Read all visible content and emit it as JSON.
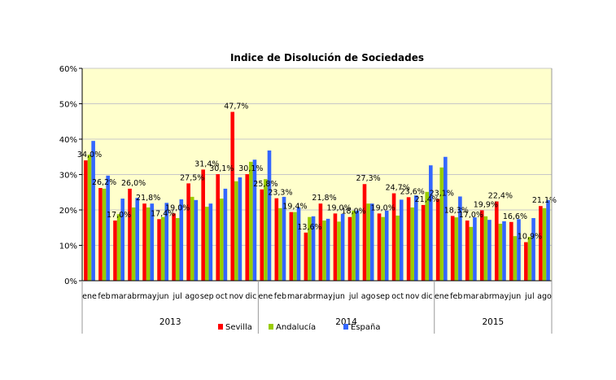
{
  "chart_data": {
    "type": "bar",
    "title": "Indice de Disolución de Sociedades",
    "xlabel": "",
    "ylabel": "",
    "ylim": [
      0,
      60
    ],
    "yticks": [
      "0%",
      "10%",
      "20%",
      "30%",
      "40%",
      "50%",
      "60%"
    ],
    "grid": true,
    "legend_position": "bottom",
    "years": [
      {
        "label": "2013",
        "months": 12
      },
      {
        "label": "2014",
        "months": 12
      },
      {
        "label": "2015",
        "months": 8
      }
    ],
    "categories": [
      "ene",
      "feb",
      "mar",
      "abr",
      "may",
      "jun",
      "jul",
      "ago",
      "sep",
      "oct",
      "nov",
      "dic",
      "ene",
      "feb",
      "mar",
      "abr",
      "may",
      "jun",
      "jul",
      "ago",
      "sep",
      "oct",
      "nov",
      "dic",
      "ene",
      "feb",
      "mar",
      "abr",
      "may",
      "jun",
      "jul",
      "ago"
    ],
    "series": [
      {
        "name": "Sevilla",
        "color": "#ff0000",
        "values": [
          34.0,
          26.2,
          17.0,
          26.0,
          21.8,
          17.4,
          19.0,
          27.5,
          31.4,
          30.1,
          47.7,
          30.1,
          25.8,
          23.3,
          19.4,
          13.6,
          21.8,
          19.0,
          18.0,
          27.3,
          19.0,
          24.7,
          23.6,
          21.4,
          23.1,
          18.3,
          17.0,
          19.9,
          22.4,
          16.6,
          10.9,
          21.1
        ],
        "labels": [
          "34,0%",
          "26,2%",
          "17,0%",
          "26,0%",
          "21,8%",
          "17,4%",
          "19,0%",
          "27,5%",
          "31,4%",
          "30,1%",
          "47,7%",
          "30,1%",
          "25,8%",
          "23,3%",
          "19,4%",
          "13,6%",
          "21,8%",
          "19,0%",
          "18,0%",
          "27,3%",
          "19,0%",
          "24,7%",
          "23,6%",
          "21,4%",
          "23,1%",
          "18,3%",
          "17,0%",
          "19,9%",
          "22,4%",
          "16,6%",
          "10,9%",
          "21,1%"
        ]
      },
      {
        "name": "Andalucía",
        "color": "#99cc00",
        "values": [
          35.6,
          26.0,
          18.8,
          20.7,
          20.7,
          18.0,
          17.7,
          23.7,
          20.9,
          23.2,
          28.1,
          33.6,
          28.7,
          20.5,
          19.4,
          18.0,
          17.0,
          16.7,
          19.8,
          21.8,
          18.0,
          18.4,
          20.7,
          25.1,
          32.0,
          17.9,
          15.2,
          18.2,
          16.1,
          12.6,
          12.4,
          20.5
        ]
      },
      {
        "name": "España",
        "color": "#3366ff",
        "values": [
          39.5,
          29.7,
          23.2,
          23.4,
          21.8,
          22.0,
          23.0,
          22.8,
          21.8,
          26.0,
          29.2,
          34.2,
          36.8,
          23.7,
          20.7,
          18.2,
          17.5,
          18.9,
          19.8,
          21.8,
          19.8,
          22.9,
          24.1,
          32.6,
          35.0,
          23.8,
          17.9,
          17.2,
          16.8,
          17.4,
          17.7,
          22.8
        ]
      }
    ]
  }
}
